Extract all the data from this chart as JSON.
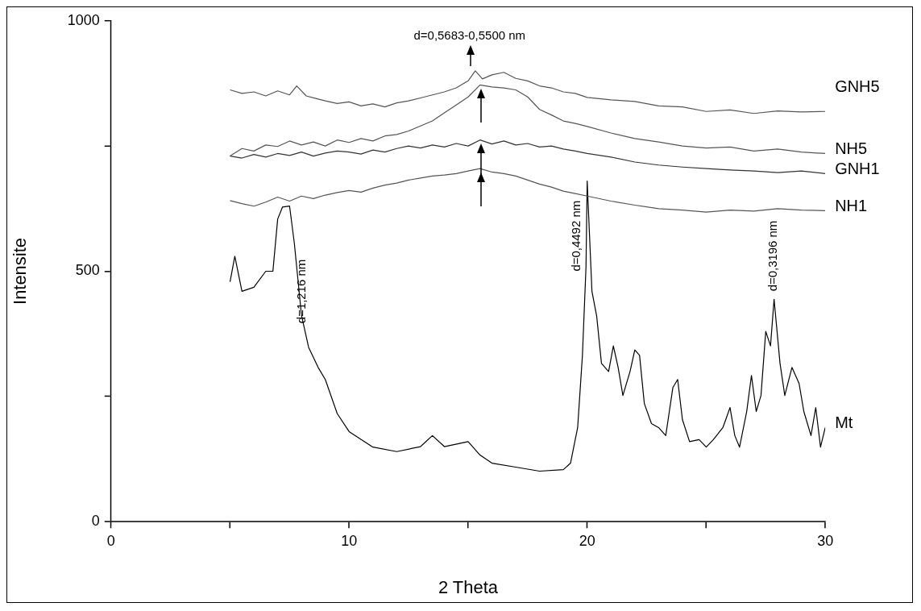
{
  "chart_data": {
    "type": "line",
    "xlabel": "2 Theta",
    "ylabel": "Intensite",
    "xlim": [
      0,
      30
    ],
    "ylim": [
      0,
      1000
    ],
    "xticks": [
      0,
      {
        "value": 5,
        "label": null
      },
      10,
      {
        "value": 15,
        "label": null
      },
      20,
      {
        "value": 25,
        "label": null
      },
      30
    ],
    "yticks": [
      0,
      {
        "value": 250,
        "label": null
      },
      500,
      {
        "value": 750,
        "label": null
      },
      1000
    ],
    "grid": false,
    "legend": false,
    "marker": "none",
    "line_style": "solid",
    "annotations": [
      "d=0,5683-0,5500 nm",
      "d=1,216 nm",
      "d=0,4492 nm",
      "d=0,3196 nm"
    ],
    "series": [
      {
        "name": "GNH5",
        "color": "#555555",
        "x": [
          5,
          5.5,
          6,
          6.5,
          7,
          7.5,
          7.8,
          8.2,
          8.6,
          9,
          9.5,
          10,
          10.5,
          11,
          11.5,
          12,
          12.5,
          13,
          13.5,
          14,
          14.5,
          15,
          15.3,
          15.6,
          16,
          16.5,
          17,
          17.5,
          18,
          18.5,
          19,
          19.5,
          20,
          21,
          22,
          23,
          24,
          25,
          26,
          27,
          28,
          29,
          30
        ],
        "values": [
          862,
          855,
          858,
          850,
          860,
          852,
          870,
          850,
          845,
          840,
          835,
          838,
          830,
          834,
          828,
          836,
          840,
          846,
          852,
          858,
          866,
          880,
          900,
          884,
          892,
          897,
          885,
          880,
          870,
          866,
          858,
          855,
          847,
          842,
          839,
          830,
          828,
          819,
          822,
          815,
          820,
          818,
          819
        ]
      },
      {
        "name": "NH5",
        "color": "#555555",
        "x": [
          5,
          5.5,
          6,
          6.5,
          7,
          7.5,
          8,
          8.5,
          9,
          9.5,
          10,
          10.5,
          11,
          11.5,
          12,
          12.5,
          13,
          13.5,
          14,
          14.5,
          15,
          15.5,
          16,
          16.5,
          17,
          17.5,
          18,
          18.5,
          19,
          19.5,
          20,
          21,
          22,
          23,
          24,
          25,
          26,
          27,
          28,
          29,
          30
        ],
        "values": [
          730,
          745,
          740,
          752,
          749,
          760,
          752,
          758,
          750,
          762,
          757,
          765,
          760,
          770,
          773,
          780,
          790,
          800,
          816,
          832,
          848,
          872,
          868,
          866,
          862,
          848,
          823,
          812,
          800,
          795,
          789,
          776,
          765,
          758,
          750,
          746,
          748,
          740,
          744,
          738,
          735
        ]
      },
      {
        "name": "GNH1",
        "color": "#333333",
        "x": [
          5,
          5.5,
          6,
          6.5,
          7,
          7.5,
          8,
          8.5,
          9,
          9.5,
          10,
          10.5,
          11,
          11.5,
          12,
          12.5,
          13,
          13.5,
          14,
          14.5,
          15,
          15.5,
          16,
          16.5,
          17,
          17.5,
          18,
          18.5,
          19,
          19.5,
          20,
          21,
          22,
          23,
          24,
          25,
          26,
          27,
          28,
          29,
          30
        ],
        "values": [
          730,
          726,
          733,
          728,
          735,
          731,
          738,
          730,
          736,
          740,
          738,
          734,
          742,
          738,
          745,
          750,
          746,
          752,
          748,
          755,
          750,
          762,
          754,
          760,
          752,
          755,
          748,
          750,
          744,
          740,
          735,
          728,
          718,
          712,
          708,
          705,
          702,
          700,
          697,
          700,
          695
        ]
      },
      {
        "name": "NH1",
        "color": "#555555",
        "x": [
          5,
          5.5,
          6,
          6.5,
          7,
          7.5,
          8,
          8.5,
          9,
          9.5,
          10,
          10.5,
          11,
          11.5,
          12,
          12.5,
          13,
          13.5,
          14,
          14.5,
          15,
          15.5,
          16,
          16.5,
          17,
          17.5,
          18,
          18.5,
          19,
          19.5,
          20,
          21,
          22,
          23,
          24,
          25,
          26,
          27,
          28,
          29,
          30
        ],
        "values": [
          641,
          635,
          630,
          638,
          648,
          640,
          650,
          645,
          652,
          657,
          661,
          658,
          666,
          672,
          676,
          682,
          686,
          690,
          692,
          695,
          700,
          705,
          698,
          695,
          690,
          682,
          674,
          668,
          660,
          655,
          650,
          640,
          632,
          625,
          622,
          618,
          622,
          620,
          625,
          622,
          621
        ]
      },
      {
        "name": "Mt",
        "color": "#000000",
        "x": [
          5,
          5.2,
          5.5,
          6,
          6.5,
          6.8,
          7,
          7.2,
          7.5,
          7.7,
          8,
          8.3,
          8.7,
          9,
          9.5,
          10,
          11,
          12,
          13,
          13.5,
          14,
          15,
          15.5,
          16,
          17,
          18,
          19,
          19.3,
          19.6,
          19.8,
          19.95,
          20,
          20.2,
          20.4,
          20.6,
          20.9,
          21.1,
          21.3,
          21.5,
          21.8,
          22,
          22.2,
          22.4,
          22.7,
          23,
          23.3,
          23.6,
          23.8,
          24,
          24.3,
          24.7,
          25,
          25.3,
          25.7,
          26,
          26.2,
          26.4,
          26.7,
          26.9,
          27.1,
          27.3,
          27.5,
          27.7,
          27.85,
          28.1,
          28.3,
          28.6,
          28.9,
          29.1,
          29.4,
          29.6,
          29.8,
          30
        ],
        "values": [
          479,
          530,
          460,
          468,
          500,
          500,
          604,
          628,
          630,
          556,
          412,
          348,
          308,
          284,
          216,
          180,
          149,
          140,
          150,
          172,
          150,
          160,
          133,
          117,
          109,
          101,
          104,
          117,
          188,
          332,
          508,
          680,
          460,
          410,
          316,
          300,
          351,
          308,
          252,
          300,
          343,
          332,
          236,
          196,
          188,
          172,
          268,
          284,
          204,
          160,
          164,
          149,
          164,
          188,
          228,
          172,
          149,
          220,
          292,
          220,
          252,
          380,
          351,
          444,
          316,
          252,
          308,
          276,
          220,
          172,
          228,
          149,
          188
        ]
      }
    ]
  }
}
